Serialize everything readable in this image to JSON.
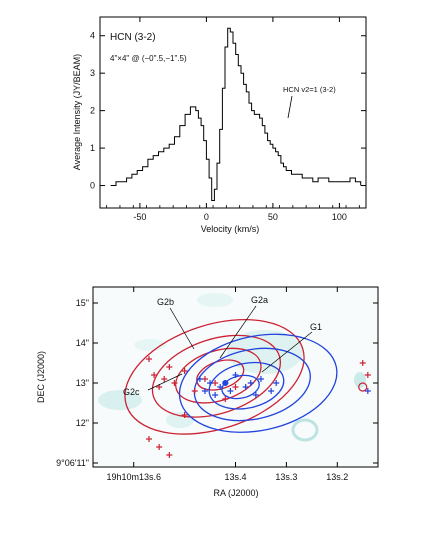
{
  "chart_data": [
    {
      "type": "line",
      "title": "HCN (3-2)",
      "subtitle": "4\"×4\" @ (−0\".5,−1\".5)",
      "annotation": "HCN v2=1 (3-2)",
      "xlabel": "Velocity (km/s)",
      "ylabel": "Average Intensity (JY/BEAM)",
      "xlim": [
        -80,
        120
      ],
      "ylim": [
        -0.6,
        4.5
      ],
      "xticks": [
        -50,
        0,
        50,
        100
      ],
      "yticks": [
        0,
        1,
        2,
        3,
        4
      ],
      "x": [
        -72,
        -68,
        -64,
        -60,
        -56,
        -52,
        -48,
        -44,
        -40,
        -36,
        -32,
        -28,
        -24,
        -20,
        -16,
        -12,
        -8,
        -6,
        -4,
        -2,
        0,
        2,
        4,
        6,
        8,
        10,
        12,
        14,
        16,
        18,
        20,
        22,
        24,
        26,
        28,
        30,
        32,
        34,
        36,
        38,
        40,
        42,
        44,
        46,
        48,
        50,
        52,
        54,
        56,
        58,
        60,
        64,
        68,
        72,
        76,
        80,
        84,
        88,
        92,
        96,
        100,
        104,
        108,
        112,
        116
      ],
      "y": [
        0.0,
        0.1,
        0.1,
        0.2,
        0.3,
        0.4,
        0.5,
        0.7,
        0.8,
        0.9,
        1.0,
        1.1,
        1.3,
        1.6,
        1.9,
        2.1,
        2.0,
        1.8,
        1.6,
        1.2,
        0.7,
        0.2,
        -0.4,
        -0.1,
        0.6,
        1.5,
        2.6,
        3.7,
        4.2,
        4.1,
        3.8,
        3.5,
        3.2,
        3.0,
        2.7,
        2.5,
        2.2,
        2.0,
        1.9,
        1.9,
        1.8,
        1.6,
        1.4,
        1.2,
        1.1,
        1.0,
        0.9,
        0.8,
        0.6,
        0.5,
        0.4,
        0.3,
        0.3,
        0.2,
        0.2,
        0.1,
        0.2,
        0.2,
        0.1,
        0.1,
        0.1,
        0.1,
        0.2,
        0.1,
        0.0
      ],
      "line_color": "#000000"
    },
    {
      "type": "scatter",
      "xlabel": "RA (J2000)",
      "ylabel": "DEC (J2000)",
      "x_reversed": true,
      "xlim": [
        13.68,
        13.12
      ],
      "ylim": [
        10.9,
        15.4
      ],
      "xtick_labels": [
        "19h10m13s.6",
        "13s.4",
        "13s.3",
        "13s.2"
      ],
      "xtick_values": [
        13.6,
        13.4,
        13.3,
        13.2
      ],
      "ytick_labels": [
        "9°06'11\"",
        "12\"",
        "13\"",
        "14\"",
        "15\""
      ],
      "ytick_values": [
        11,
        12,
        13,
        14,
        15
      ],
      "labels": [
        "G2b",
        "G2a",
        "G1",
        "G2c"
      ],
      "series": [
        {
          "color": "#cc2233",
          "contour_center": [
            13.43,
            13.2
          ],
          "contour_levels": [
            0.55,
            1.0,
            1.5,
            2.1
          ],
          "x": [
            13.57,
            13.56,
            13.55,
            13.54,
            13.53,
            13.52,
            13.5,
            13.48,
            13.46,
            13.44,
            13.42,
            13.4,
            13.57,
            13.55,
            13.53,
            13.5,
            13.15,
            13.14
          ],
          "y": [
            13.6,
            13.2,
            12.9,
            13.1,
            13.4,
            13.0,
            13.3,
            12.8,
            13.1,
            13.0,
            12.6,
            12.9,
            11.6,
            11.4,
            11.2,
            12.2,
            13.5,
            13.2
          ]
        },
        {
          "color": "#2244dd",
          "contour_center": [
            13.39,
            12.9
          ],
          "contour_levels": [
            0.45,
            0.9,
            1.4,
            1.9
          ],
          "x": [
            13.47,
            13.46,
            13.45,
            13.44,
            13.43,
            13.42,
            13.41,
            13.4,
            13.38,
            13.37,
            13.36,
            13.35,
            13.33,
            13.32,
            13.14
          ],
          "y": [
            13.1,
            12.8,
            13.0,
            12.7,
            12.9,
            13.0,
            12.8,
            13.2,
            12.9,
            13.0,
            12.7,
            13.1,
            12.8,
            13.0,
            12.8
          ]
        }
      ]
    }
  ]
}
